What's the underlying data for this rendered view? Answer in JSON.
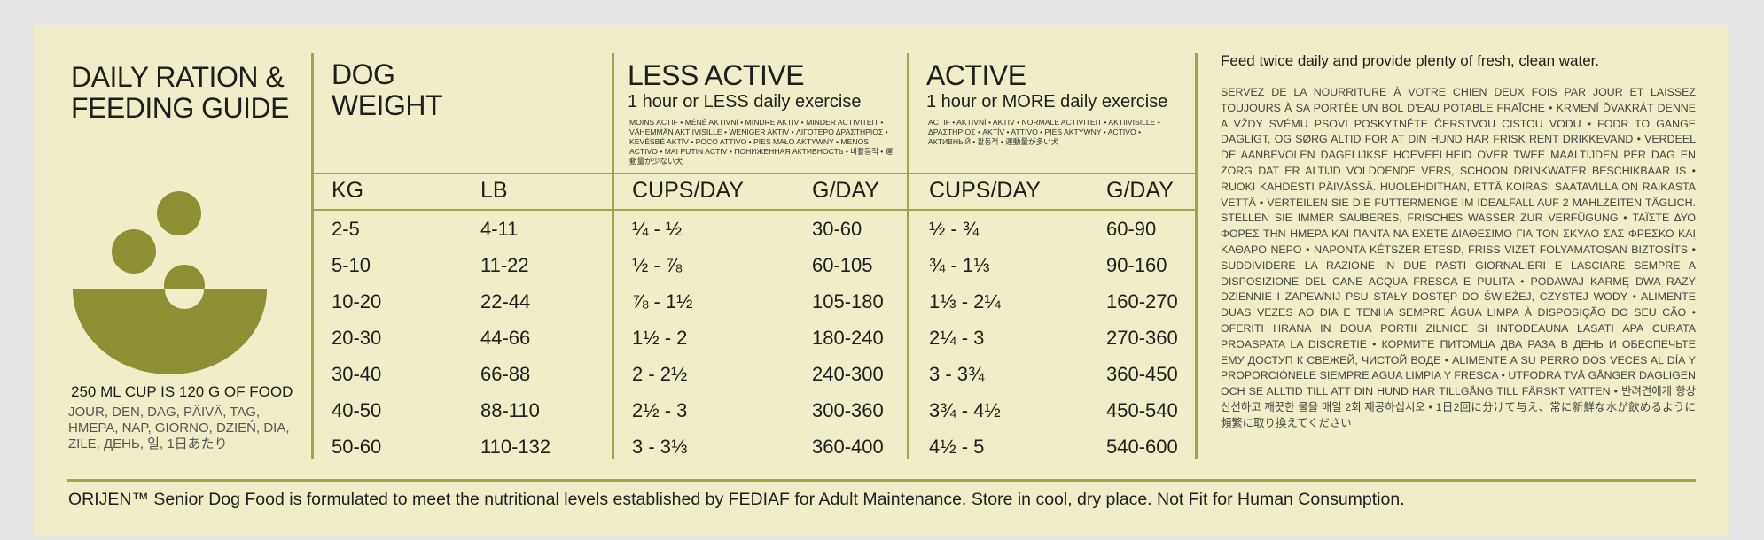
{
  "header": {
    "title": [
      "DAILY RATION &",
      "FEEDING GUIDE"
    ]
  },
  "left": {
    "cup_note": "250 ML CUP IS 120 G OF FOOD",
    "day_words": "JOUR, DEN, DAG, PÄIVÄ, TAG, ΗΜΕΡΑ, NAP, GIORNO, DZIEŃ, DIA, ZILE, ДЕНЬ, 일, 1日あたり"
  },
  "table": {
    "groups": [
      {
        "title": [
          "DOG",
          "WEIGHT"
        ]
      },
      {
        "title": "LESS ACTIVE",
        "subtitle": "1 hour or LESS daily exercise",
        "note": "MOINS ACTIF • MÉNĚ AKTIVNÍ • MINDRE AKTIV • MINDER ACTIVITEIT • VÄHEMMÄN AKTIIVISILLE • WENIGER AKTIV • ΛΙΓΟΤΕΡΟ ΔΡΑΣΤΗΡΙΟΣ • KEVÉSBÉ AKTÍV • POCO ATTIVO • PIES MAŁO AKTYWNY • MENOS ACTIVO • MAI PUTIN ACTIV • ПОНИЖЕННАЯ АКТИВНОСТЬ • 비활동적 • 運動量が少ない犬"
      },
      {
        "title": "ACTIVE",
        "subtitle": "1 hour or MORE daily exercise",
        "note": "ACTIF • AKTIVNÍ • AKTIV • NORMALE ACTIVITEIT • AKTIIVISILLE • ΔΡΑΣΤΗΡΙΟΣ • AKTÍV • ATTIVO • PIES AKTYWNY • ACTIVO • АКТИВНЫЙ • 활동적 • 運動量が多い犬"
      }
    ],
    "columns": [
      "KG",
      "LB",
      "CUPS/DAY",
      "G/DAY",
      "CUPS/DAY",
      "G/DAY"
    ],
    "rows": [
      [
        "2-5",
        "4-11",
        "¼ - ½",
        "30-60",
        "½ - ¾",
        "60-90"
      ],
      [
        "5-10",
        "11-22",
        "½ - ⅞",
        "60-105",
        "¾ - 1⅓",
        "90-160"
      ],
      [
        "10-20",
        "22-44",
        "⅞ - 1½",
        "105-180",
        "1⅓ - 2¼",
        "160-270"
      ],
      [
        "20-30",
        "44-66",
        "1½ - 2",
        "180-240",
        "2¼ - 3",
        "270-360"
      ],
      [
        "30-40",
        "66-88",
        "2 - 2½",
        "240-300",
        "3 - 3¾",
        "360-450"
      ],
      [
        "40-50",
        "88-110",
        "2½ - 3",
        "300-360",
        "3¾ - 4½",
        "450-540"
      ],
      [
        "50-60",
        "110-132",
        "3 - 3⅓",
        "360-400",
        "4½ - 5",
        "540-600"
      ]
    ]
  },
  "right": {
    "heading": "Feed twice daily and provide plenty of fresh, clean water.",
    "paragraph": "SERVEZ DE LA NOURRITURE À VOTRE CHIEN DEUX FOIS PAR JOUR ET LAISSEZ TOUJOURS À SA PORTÉE UN BOL D'EAU POTABLE FRAÎCHE • KRMENÍ ĎVAKRÁT DENNE A VŽDY SVÉMU PSOVI POSKYTNĚTE ČERSTVOU CISTOU VODU • FODR TO GANGE DAGLIGT, OG SØRG ALTID FOR AT DIN HUND HAR FRISK RENT DRIKKEVAND • VERDEEL DE AANBEVOLEN DAGELIJKSE HOEVEELHEID OVER TWEE MAALTIJDEN PER DAG EN ZORG DAT ER ALTIJD VOLDOENDE VERS, SCHOON DRINKWATER BESCHIKBAAR IS • RUOKI KAHDESTI PÄIVÄSSÄ. HUOLEHDITHAN, ETTÄ KOIRASI SAATAVILLA ON RAIKASTA VETTÄ • VERTEILEN SIE DIE FUTTERMENGE IM IDEALFALL AUF 2 MAHLZEITEN TÄGLICH. STELLEN SIE IMMER SAUBERES, FRISCHES WASSER ZUR VERFÜGUNG • ΤΑΪΣΤΕ ΔΥΟ ΦΟΡΕΣ ΤΗΝ ΗΜΕΡΑ ΚΑΙ ΠΑΝΤΑ ΝΑ ΕΧΕΤΕ ΔΙΑΘΕΣΙΜΟ ΓΙΑ ΤΟΝ ΣΚΥΛΟ ΣΑΣ ΦΡΕΣΚΟ ΚΑΙ ΚΑΘΑΡΟ ΝΕΡΟ • NAPONTA KÉTSZER ETESD, FRISS VIZET FOLYAMATOSAN BIZTOSÍTS • SUDDIVIDERE LA RAZIONE IN DUE PASTI GIORNALIERI E LASCIARE SEMPRE A DISPOSIZIONE DEL CANE ACQUA FRESCA E PULITA • PODAWAJ KARMĘ DWA RAZY DZIENNIE I ZAPEWNIJ PSU STAŁY DOSTĘP DO ŚWIEŻEJ, CZYSTEJ WODY • ALIMENTE DUAS VEZES AO DIA E TENHA SEMPRE ÁGUA LIMPA À DISPOSIÇÃO DO SEU CÃO • OFERITI HRANA IN DOUA PORTII ZILNICE SI INTODEAUNA LASATI APA CURATA PROASPATA LA DISCRETIE • КОРМИТЕ ПИТОМЦА ДВА РАЗА В ДЕНЬ И ОБЕСПЕЧЬТЕ ЕМУ ДОСТУП К СВЕЖЕЙ, ЧИСТОЙ ВОДЕ • ALIMENTE A SU PERRO DOS VECES AL DÍA Y PROPORCIÓNELE SIEMPRE AGUA LIMPIA Y FRESCA • UTFODRA TVÅ GÅNGER DAGLIGEN OCH SE ALLTID TILL ATT DIN HUND HAR TILLGÅNG TILL FÄRSKT VATTEN • 반려견에게 항상 신선하고 깨끗한 물을 매일 2회 제공하십시오 • 1日2回に分けて与え、常に新鮮な水が飲めるように頻繁に取り換えてください"
  },
  "footer": "ORIJEN™ Senior Dog Food is formulated to meet the nutritional levels established by FEDIAF for Adult Maintenance. Store in cool, dry place. Not Fit for Human Consumption."
}
